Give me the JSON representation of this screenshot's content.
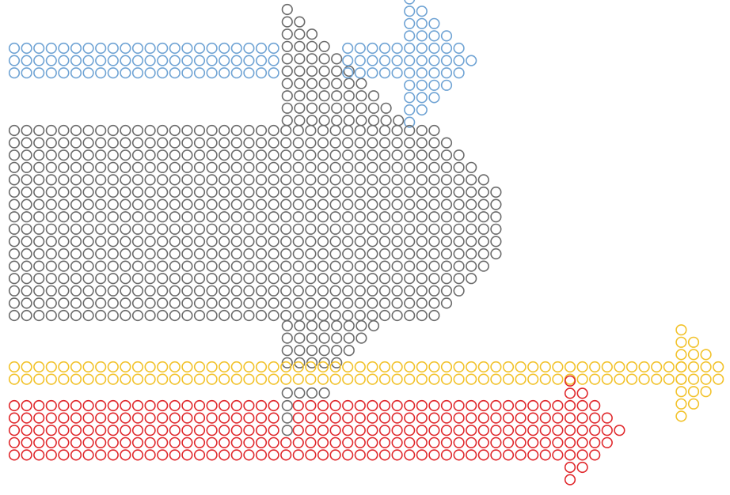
{
  "artwork": {
    "description_free": true,
    "colors": {
      "background": "#ffffff",
      "blue": "#6fa3d4",
      "gray": "#6b6b6b",
      "yellow": "#f2c22a",
      "red": "#e0282c"
    },
    "arrows": [
      {
        "name": "blue-arrow",
        "color_key": "blue"
      },
      {
        "name": "gray-arrow",
        "color_key": "gray"
      },
      {
        "name": "yellow-arrow",
        "color_key": "yellow"
      },
      {
        "name": "red-arrow",
        "color_key": "red"
      }
    ]
  }
}
